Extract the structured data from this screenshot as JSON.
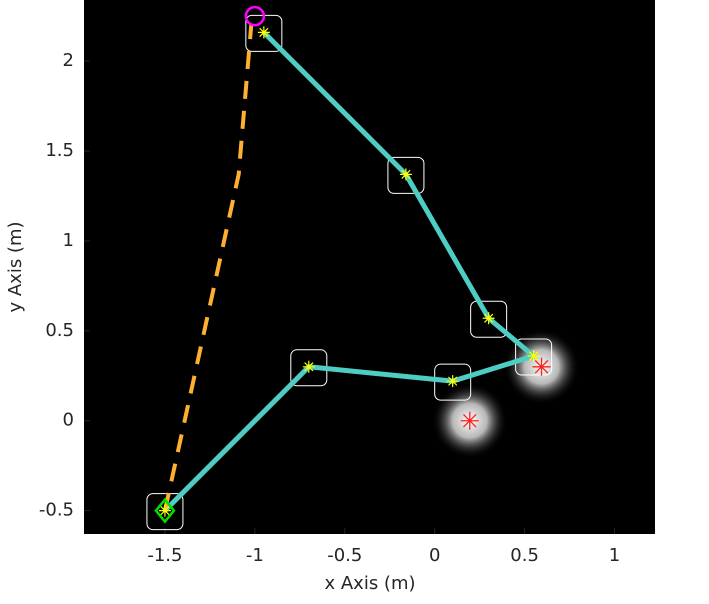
{
  "chart_data": {
    "type": "line",
    "xlabel": "x Axis (m)",
    "ylabel": "y Axis (m)",
    "xlim": [
      -1.95,
      1.225
    ],
    "ylim": [
      -0.63,
      2.34
    ],
    "xticks": [
      -1.5,
      -1,
      -0.5,
      0,
      0.5,
      1
    ],
    "yticks": [
      -0.5,
      0,
      0.5,
      1,
      1.5,
      2
    ],
    "background": "#000000",
    "series": [
      {
        "color": "#4ecdc4",
        "line": "solid",
        "marker": "star",
        "marker_color": "#ffff00",
        "box": true,
        "x": [
          -1.5,
          -0.7,
          0.1,
          0.55,
          0.3,
          -0.16,
          -0.95
        ],
        "values": [
          -0.5,
          0.3,
          0.22,
          0.36,
          0.57,
          1.37,
          2.16
        ]
      },
      {
        "color": "#ffb030",
        "line": "dashed",
        "x": [
          -1.5,
          -1.09,
          -1.02
        ],
        "values": [
          -0.5,
          1.37,
          2.2
        ]
      },
      {
        "color": "#ff2020",
        "marker": "asterisk",
        "glow": true,
        "x": [
          0.195,
          0.594
        ],
        "values": [
          0,
          0.3
        ]
      },
      {
        "color": "#00e000",
        "marker": "diamond",
        "x": [
          -1.5
        ],
        "values": [
          -0.5
        ]
      },
      {
        "color": "#ff00ff",
        "marker": "circle",
        "x": [
          -1.0
        ],
        "values": [
          2.25
        ]
      }
    ]
  }
}
